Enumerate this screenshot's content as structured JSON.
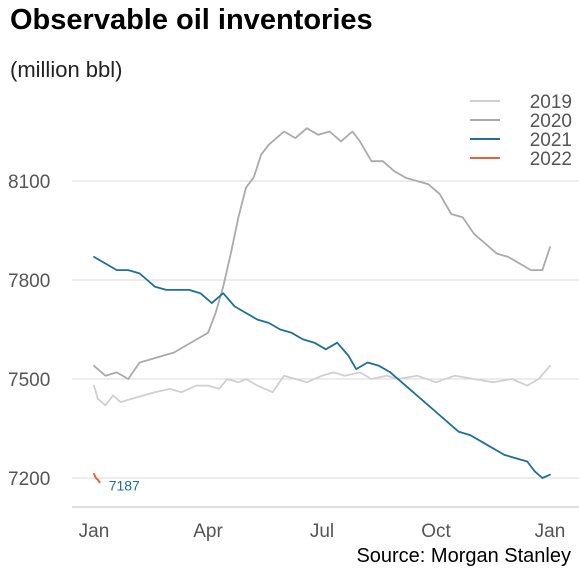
{
  "chart_data": {
    "type": "line",
    "title": "Observable oil inventories",
    "subtitle": "(million bbl)",
    "source": "Source: Morgan Stanley",
    "xlabel": "",
    "ylabel": "",
    "x_ticks": [
      "Jan",
      "Apr",
      "Jul",
      "Oct",
      "Jan"
    ],
    "y_ticks": [
      7200,
      7500,
      7800,
      8100
    ],
    "ylim": [
      7090,
      8300
    ],
    "grid": "horizontal",
    "legend_position": "top-right",
    "series": [
      {
        "name": "2019",
        "color": "#d0d0d0",
        "points": [
          [
            0,
            7480
          ],
          [
            0.1,
            7440
          ],
          [
            0.3,
            7420
          ],
          [
            0.5,
            7450
          ],
          [
            0.7,
            7430
          ],
          [
            1.0,
            7440
          ],
          [
            1.3,
            7450
          ],
          [
            1.6,
            7460
          ],
          [
            2.0,
            7470
          ],
          [
            2.3,
            7460
          ],
          [
            2.5,
            7470
          ],
          [
            2.7,
            7480
          ],
          [
            3.0,
            7480
          ],
          [
            3.3,
            7470
          ],
          [
            3.5,
            7500
          ],
          [
            3.8,
            7490
          ],
          [
            4.0,
            7500
          ],
          [
            4.3,
            7480
          ],
          [
            4.7,
            7460
          ],
          [
            5.0,
            7510
          ],
          [
            5.3,
            7500
          ],
          [
            5.6,
            7490
          ],
          [
            6.0,
            7510
          ],
          [
            6.3,
            7520
          ],
          [
            6.6,
            7510
          ],
          [
            7.0,
            7520
          ],
          [
            7.3,
            7500
          ],
          [
            7.7,
            7510
          ],
          [
            8.0,
            7500
          ],
          [
            8.5,
            7510
          ],
          [
            9.0,
            7490
          ],
          [
            9.5,
            7510
          ],
          [
            10.0,
            7500
          ],
          [
            10.5,
            7490
          ],
          [
            11.0,
            7500
          ],
          [
            11.4,
            7480
          ],
          [
            11.7,
            7500
          ],
          [
            12.0,
            7540
          ]
        ]
      },
      {
        "name": "2020",
        "color": "#aaaaaa",
        "points": [
          [
            0,
            7540
          ],
          [
            0.3,
            7510
          ],
          [
            0.6,
            7520
          ],
          [
            0.9,
            7500
          ],
          [
            1.2,
            7550
          ],
          [
            1.5,
            7560
          ],
          [
            1.8,
            7570
          ],
          [
            2.1,
            7580
          ],
          [
            2.4,
            7600
          ],
          [
            2.7,
            7620
          ],
          [
            3.0,
            7640
          ],
          [
            3.2,
            7700
          ],
          [
            3.4,
            7780
          ],
          [
            3.6,
            7880
          ],
          [
            3.8,
            7990
          ],
          [
            4.0,
            8080
          ],
          [
            4.2,
            8110
          ],
          [
            4.4,
            8180
          ],
          [
            4.6,
            8210
          ],
          [
            4.8,
            8230
          ],
          [
            5.0,
            8250
          ],
          [
            5.3,
            8230
          ],
          [
            5.6,
            8260
          ],
          [
            5.9,
            8240
          ],
          [
            6.2,
            8250
          ],
          [
            6.5,
            8220
          ],
          [
            6.8,
            8250
          ],
          [
            7.0,
            8220
          ],
          [
            7.3,
            8160
          ],
          [
            7.6,
            8160
          ],
          [
            7.9,
            8130
          ],
          [
            8.2,
            8110
          ],
          [
            8.5,
            8100
          ],
          [
            8.8,
            8090
          ],
          [
            9.1,
            8060
          ],
          [
            9.4,
            8000
          ],
          [
            9.7,
            7990
          ],
          [
            10.0,
            7940
          ],
          [
            10.3,
            7910
          ],
          [
            10.6,
            7880
          ],
          [
            10.9,
            7870
          ],
          [
            11.2,
            7850
          ],
          [
            11.5,
            7830
          ],
          [
            11.8,
            7830
          ],
          [
            12.0,
            7900
          ]
        ]
      },
      {
        "name": "2021",
        "color": "#1f6f9a",
        "points": [
          [
            0,
            7870
          ],
          [
            0.3,
            7850
          ],
          [
            0.6,
            7830
          ],
          [
            0.9,
            7830
          ],
          [
            1.2,
            7820
          ],
          [
            1.4,
            7800
          ],
          [
            1.6,
            7780
          ],
          [
            1.9,
            7770
          ],
          [
            2.2,
            7770
          ],
          [
            2.5,
            7770
          ],
          [
            2.8,
            7760
          ],
          [
            3.1,
            7730
          ],
          [
            3.4,
            7760
          ],
          [
            3.7,
            7720
          ],
          [
            4.0,
            7700
          ],
          [
            4.3,
            7680
          ],
          [
            4.6,
            7670
          ],
          [
            4.9,
            7650
          ],
          [
            5.2,
            7640
          ],
          [
            5.5,
            7620
          ],
          [
            5.8,
            7610
          ],
          [
            6.1,
            7590
          ],
          [
            6.4,
            7610
          ],
          [
            6.7,
            7570
          ],
          [
            6.9,
            7530
          ],
          [
            7.2,
            7550
          ],
          [
            7.5,
            7540
          ],
          [
            7.8,
            7520
          ],
          [
            8.1,
            7490
          ],
          [
            8.4,
            7460
          ],
          [
            8.7,
            7430
          ],
          [
            9.0,
            7400
          ],
          [
            9.3,
            7370
          ],
          [
            9.6,
            7340
          ],
          [
            9.9,
            7330
          ],
          [
            10.2,
            7310
          ],
          [
            10.5,
            7290
          ],
          [
            10.8,
            7270
          ],
          [
            11.1,
            7260
          ],
          [
            11.4,
            7250
          ],
          [
            11.6,
            7220
          ],
          [
            11.8,
            7200
          ],
          [
            12.0,
            7210
          ]
        ]
      },
      {
        "name": "2022",
        "color": "#e8603c",
        "points": [
          [
            0,
            7212
          ],
          [
            0.05,
            7200
          ],
          [
            0.1,
            7195
          ],
          [
            0.15,
            7187
          ]
        ]
      }
    ],
    "annotations": [
      {
        "text": "7187",
        "series": "2022",
        "color": "#1f6f9a"
      }
    ]
  }
}
